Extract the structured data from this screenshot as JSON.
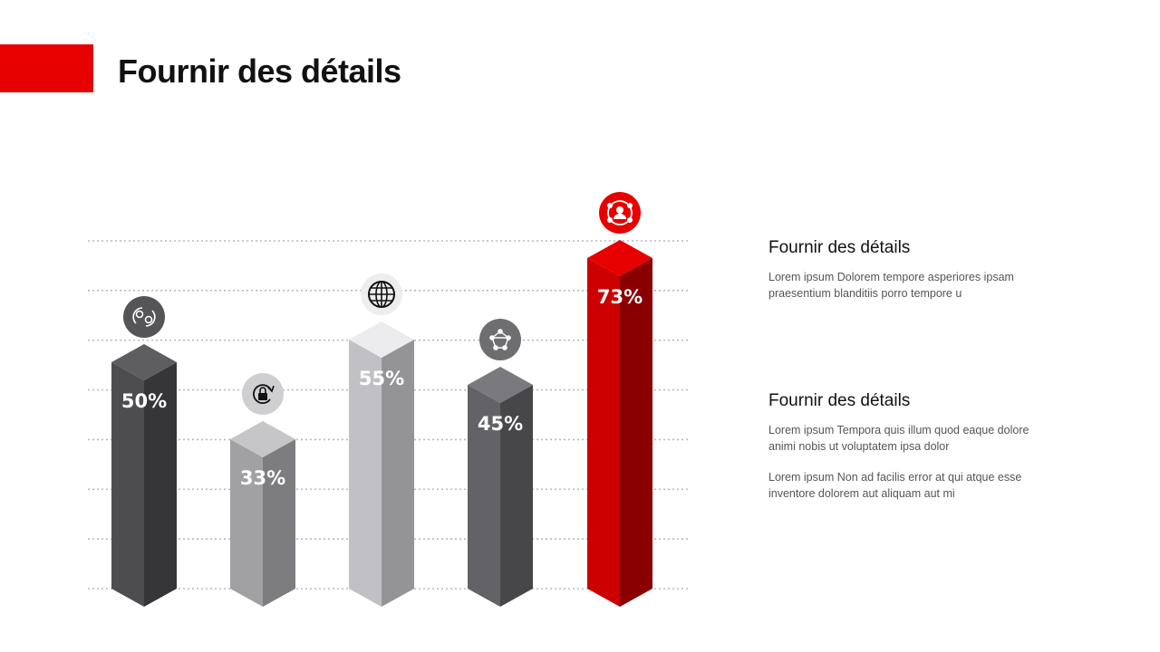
{
  "title": "Fournir des détails",
  "accent_color": "#e60000",
  "chart_data": {
    "type": "bar",
    "categories": [
      "",
      "",
      "",
      "",
      ""
    ],
    "values": [
      50,
      33,
      55,
      45,
      73
    ],
    "labels": [
      "50%",
      "33%",
      "55%",
      "45%",
      "73%"
    ],
    "icons": [
      "people-exchange-icon",
      "lock-refresh-icon",
      "globe-icon",
      "network-icon",
      "team-circle-icon"
    ],
    "colors": [
      {
        "front": "#4d4d50",
        "side": "#363638",
        "top": "#5e5e61",
        "icon": "#555558"
      },
      {
        "front": "#a1a1a4",
        "side": "#7d7d80",
        "top": "#c6c6c9",
        "icon": "#cfcfd2"
      },
      {
        "front": "#c1c0c4",
        "side": "#949497",
        "top": "#ecebee",
        "icon": "#ededed"
      },
      {
        "front": "#636266",
        "side": "#474749",
        "top": "#7a797d",
        "icon": "#6e6e71"
      },
      {
        "front": "#cc0000",
        "side": "#8a0000",
        "top": "#e60000",
        "icon": "#e60000"
      }
    ],
    "ylim": [
      0,
      80
    ],
    "grid": true,
    "xlabel": "",
    "ylabel": ""
  },
  "info": [
    {
      "heading": "Fournir des détails",
      "paragraphs": [
        "Lorem ipsum Dolorem tempore asperiores ipsam praesentium blanditiis porro tempore u"
      ]
    },
    {
      "heading": "Fournir des détails",
      "paragraphs": [
        "Lorem ipsum Tempora quis illum quod eaque dolore animi nobis ut voluptatem ipsa dolor",
        "Lorem ipsum Non ad facilis error at qui atque esse inventore dolorem aut aliquam aut mi"
      ]
    }
  ]
}
